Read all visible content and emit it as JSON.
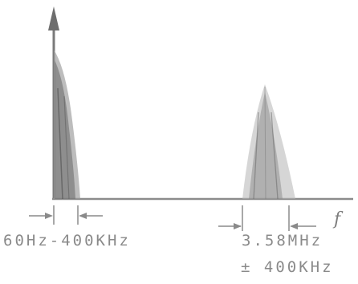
{
  "axis": {
    "x_label": "f"
  },
  "bands": {
    "low": {
      "label": "60Hz-400KHz"
    },
    "high": {
      "label_line1": "3.58MHz",
      "label_line2": "± 400KHz"
    }
  }
}
